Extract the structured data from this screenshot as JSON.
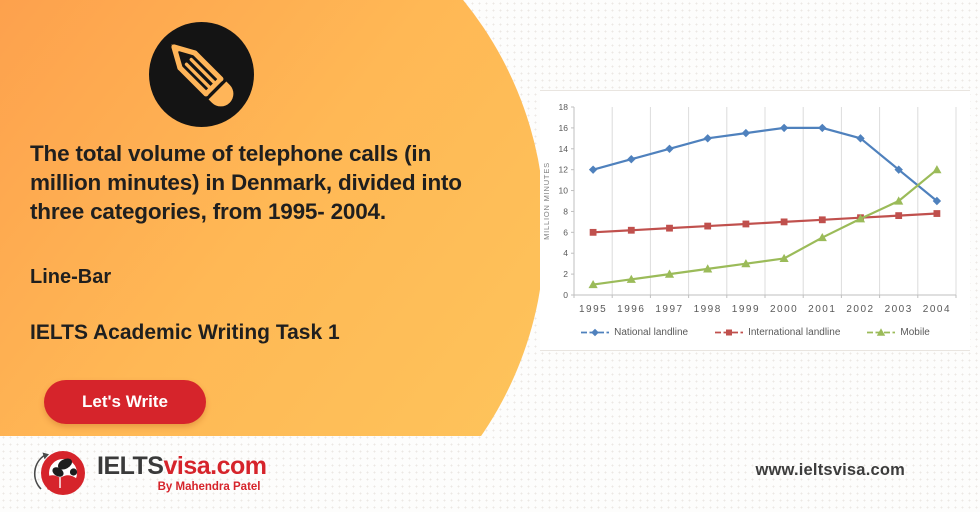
{
  "left_panel": {
    "title": "The total volume of telephone calls (in million minutes) in Denmark, divided into three categories, from 1995- 2004.",
    "chart_type_label": "Line-Bar",
    "heading": "IELTS Academic Writing Task 1",
    "cta_label": "Let's Write",
    "icon": "pencil-icon"
  },
  "branding": {
    "wordmark_primary": "IELTS",
    "wordmark_secondary": "visa.com",
    "tagline": "By Mahendra Patel",
    "website": "www.ieltsvisa.com"
  },
  "colors": {
    "accent_red": "#d6242b",
    "orange_gradient": [
      "#fda14d",
      "#ffb855",
      "#fdc45b"
    ],
    "series_blue": "#4F81BD",
    "series_red": "#C0504D",
    "series_green": "#9BBB59"
  },
  "chart_data": {
    "type": "line",
    "categories": [
      "1995",
      "1996",
      "1997",
      "1998",
      "1999",
      "2000",
      "2001",
      "2002",
      "2003",
      "2004"
    ],
    "series": [
      {
        "name": "National landline",
        "marker": "diamond",
        "color": "#4F81BD",
        "values": [
          12,
          13,
          14,
          15,
          15.5,
          16,
          16,
          15,
          12,
          9
        ]
      },
      {
        "name": "International landline",
        "marker": "square",
        "color": "#C0504D",
        "values": [
          6,
          6.2,
          6.4,
          6.6,
          6.8,
          7,
          7.2,
          7.4,
          7.6,
          7.8
        ]
      },
      {
        "name": "Mobile",
        "marker": "triangle",
        "color": "#9BBB59",
        "values": [
          1,
          1.5,
          2,
          2.5,
          3,
          3.5,
          5.5,
          7.3,
          9,
          12
        ]
      }
    ],
    "title": "",
    "xlabel": "",
    "ylabel": "MILLION MINUTES",
    "ylim": [
      0,
      18
    ],
    "ytick_step": 2,
    "grid": "vertical-only",
    "legend_position": "bottom"
  }
}
